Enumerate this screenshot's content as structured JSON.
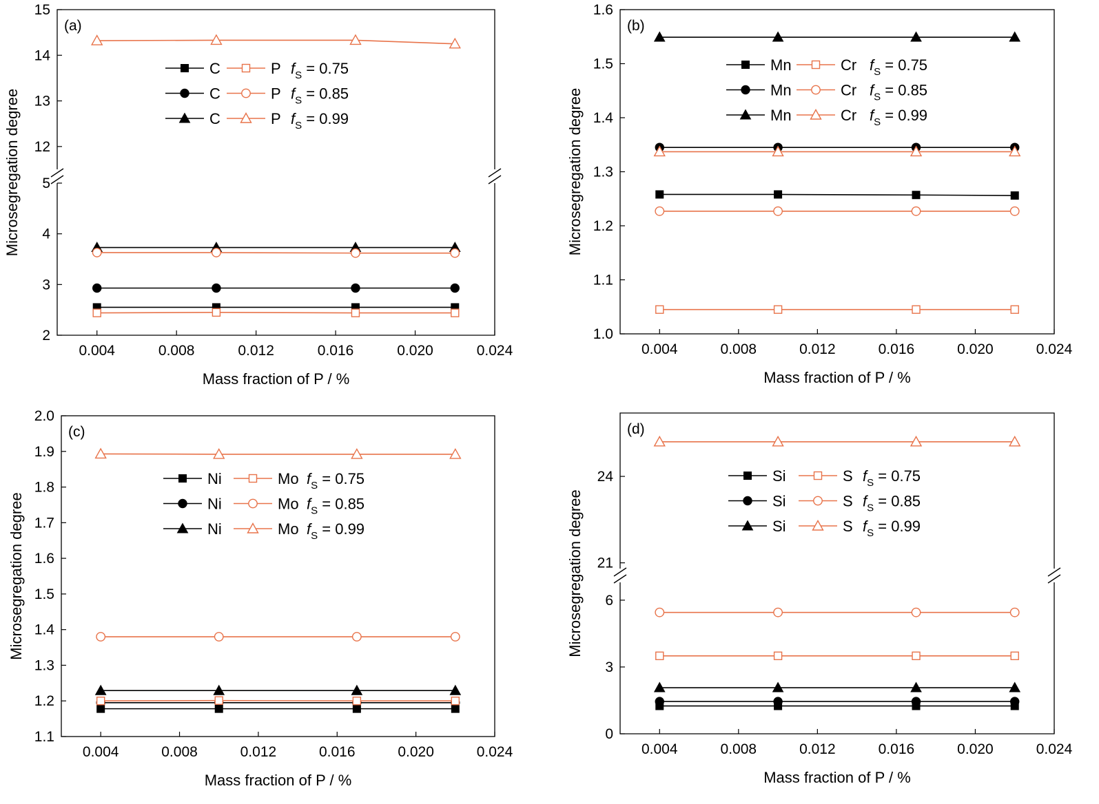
{
  "chart_data": [
    {
      "type": "line",
      "panel": "(a)",
      "xlabel": "Mass fraction of P / %",
      "ylabel": "Microsegregation degree",
      "x": [
        0.004,
        0.01,
        0.017,
        0.022
      ],
      "xticks": [
        "0.004",
        "0.008",
        "0.012",
        "0.016",
        "0.020",
        "0.024"
      ],
      "xlim": [
        0.002,
        0.024
      ],
      "broken_axis": true,
      "ylim_lower": [
        2,
        5
      ],
      "ylim_upper": [
        11.5,
        15
      ],
      "yticks_lower": [
        "2",
        "3",
        "4",
        "5"
      ],
      "yticks_upper": [
        "12",
        "13",
        "14",
        "15"
      ],
      "legend": [
        [
          "C",
          "P",
          "0.75"
        ],
        [
          "C",
          "P",
          "0.85"
        ],
        [
          "C",
          "P",
          "0.99"
        ]
      ],
      "series": [
        {
          "element": "C",
          "fs": "0.75",
          "marker": "square",
          "filled": true,
          "color": "#000000",
          "values": [
            2.55,
            2.55,
            2.55,
            2.55
          ]
        },
        {
          "element": "C",
          "fs": "0.85",
          "marker": "circle",
          "filled": true,
          "color": "#000000",
          "values": [
            2.93,
            2.93,
            2.93,
            2.93
          ]
        },
        {
          "element": "C",
          "fs": "0.99",
          "marker": "triangle",
          "filled": true,
          "color": "#000000",
          "values": [
            3.73,
            3.73,
            3.73,
            3.73
          ]
        },
        {
          "element": "P",
          "fs": "0.75",
          "marker": "square",
          "filled": false,
          "color": "#E8734A",
          "values": [
            2.44,
            2.45,
            2.44,
            2.44
          ]
        },
        {
          "element": "P",
          "fs": "0.85",
          "marker": "circle",
          "filled": false,
          "color": "#E8734A",
          "values": [
            3.63,
            3.63,
            3.62,
            3.62
          ]
        },
        {
          "element": "P",
          "fs": "0.99",
          "marker": "triangle",
          "filled": false,
          "color": "#E8734A",
          "values": [
            14.32,
            14.33,
            14.33,
            14.25
          ]
        }
      ]
    },
    {
      "type": "line",
      "panel": "(b)",
      "xlabel": "Mass fraction of P / %",
      "ylabel": "Microsegregation degree",
      "x": [
        0.004,
        0.01,
        0.017,
        0.022
      ],
      "xticks": [
        "0.004",
        "0.008",
        "0.012",
        "0.016",
        "0.020",
        "0.024"
      ],
      "xlim": [
        0.002,
        0.024
      ],
      "ylim": [
        1.0,
        1.6
      ],
      "yticks": [
        "1.0",
        "1.1",
        "1.2",
        "1.3",
        "1.4",
        "1.5",
        "1.6"
      ],
      "legend": [
        [
          "Mn",
          "Cr",
          "0.75"
        ],
        [
          "Mn",
          "Cr",
          "0.85"
        ],
        [
          "Mn",
          "Cr",
          "0.99"
        ]
      ],
      "series": [
        {
          "element": "Mn",
          "fs": "0.75",
          "marker": "square",
          "filled": true,
          "color": "#000000",
          "values": [
            1.258,
            1.258,
            1.257,
            1.256
          ]
        },
        {
          "element": "Mn",
          "fs": "0.85",
          "marker": "circle",
          "filled": true,
          "color": "#000000",
          "values": [
            1.345,
            1.345,
            1.345,
            1.345
          ]
        },
        {
          "element": "Mn",
          "fs": "0.99",
          "marker": "triangle",
          "filled": true,
          "color": "#000000",
          "values": [
            1.549,
            1.549,
            1.549,
            1.549
          ]
        },
        {
          "element": "Cr",
          "fs": "0.75",
          "marker": "square",
          "filled": false,
          "color": "#E8734A",
          "values": [
            1.045,
            1.045,
            1.045,
            1.045
          ]
        },
        {
          "element": "Cr",
          "fs": "0.85",
          "marker": "circle",
          "filled": false,
          "color": "#E8734A",
          "values": [
            1.227,
            1.227,
            1.227,
            1.227
          ]
        },
        {
          "element": "Cr",
          "fs": "0.99",
          "marker": "triangle",
          "filled": false,
          "color": "#E8734A",
          "values": [
            1.337,
            1.337,
            1.337,
            1.337
          ]
        }
      ]
    },
    {
      "type": "line",
      "panel": "(c)",
      "xlabel": "Mass fraction of P / %",
      "ylabel": "Microsegregation degree",
      "x": [
        0.004,
        0.01,
        0.017,
        0.022
      ],
      "xticks": [
        "0.004",
        "0.008",
        "0.012",
        "0.016",
        "0.020",
        "0.024"
      ],
      "xlim": [
        0.002,
        0.024
      ],
      "ylim": [
        1.1,
        2.0
      ],
      "yticks": [
        "1.1",
        "1.2",
        "1.3",
        "1.4",
        "1.5",
        "1.6",
        "1.7",
        "1.8",
        "1.9",
        "2.0"
      ],
      "legend": [
        [
          "Ni",
          "Mo",
          "0.75"
        ],
        [
          "Ni",
          "Mo",
          "0.85"
        ],
        [
          "Ni",
          "Mo",
          "0.99"
        ]
      ],
      "series": [
        {
          "element": "Ni",
          "fs": "0.75",
          "marker": "square",
          "filled": true,
          "color": "#000000",
          "values": [
            1.178,
            1.178,
            1.178,
            1.178
          ]
        },
        {
          "element": "Ni",
          "fs": "0.85",
          "marker": "circle",
          "filled": true,
          "color": "#000000",
          "values": [
            1.195,
            1.195,
            1.195,
            1.195
          ]
        },
        {
          "element": "Ni",
          "fs": "0.99",
          "marker": "triangle",
          "filled": true,
          "color": "#000000",
          "values": [
            1.229,
            1.229,
            1.229,
            1.229
          ]
        },
        {
          "element": "Mo",
          "fs": "0.75",
          "marker": "square",
          "filled": false,
          "color": "#E8734A",
          "values": [
            1.2,
            1.201,
            1.2,
            1.2
          ]
        },
        {
          "element": "Mo",
          "fs": "0.85",
          "marker": "circle",
          "filled": false,
          "color": "#E8734A",
          "values": [
            1.38,
            1.38,
            1.38,
            1.38
          ]
        },
        {
          "element": "Mo",
          "fs": "0.99",
          "marker": "triangle",
          "filled": false,
          "color": "#E8734A",
          "values": [
            1.893,
            1.892,
            1.892,
            1.892
          ]
        }
      ]
    },
    {
      "type": "line",
      "panel": "(d)",
      "xlabel": "Mass fraction of P / %",
      "ylabel": "Microsegregation degree",
      "x": [
        0.004,
        0.01,
        0.017,
        0.022
      ],
      "xticks": [
        "0.004",
        "0.008",
        "0.012",
        "0.016",
        "0.020",
        "0.024"
      ],
      "xlim": [
        0.002,
        0.024
      ],
      "broken_axis": true,
      "ylim_lower": [
        0,
        6.8
      ],
      "ylim_upper": [
        20.8,
        26.2
      ],
      "yticks_lower": [
        "0",
        "3",
        "6"
      ],
      "yticks_upper": [
        "21",
        "24"
      ],
      "legend": [
        [
          "Si",
          "S",
          "0.75"
        ],
        [
          "Si",
          "S",
          "0.85"
        ],
        [
          "Si",
          "S",
          "0.99"
        ]
      ],
      "series": [
        {
          "element": "Si",
          "fs": "0.75",
          "marker": "square",
          "filled": true,
          "color": "#000000",
          "values": [
            1.25,
            1.25,
            1.25,
            1.25
          ]
        },
        {
          "element": "Si",
          "fs": "0.85",
          "marker": "circle",
          "filled": true,
          "color": "#000000",
          "values": [
            1.45,
            1.45,
            1.45,
            1.45
          ]
        },
        {
          "element": "Si",
          "fs": "0.99",
          "marker": "triangle",
          "filled": true,
          "color": "#000000",
          "values": [
            2.07,
            2.07,
            2.07,
            2.07
          ]
        },
        {
          "element": "S",
          "fs": "0.75",
          "marker": "square",
          "filled": false,
          "color": "#E8734A",
          "values": [
            3.5,
            3.5,
            3.5,
            3.5
          ]
        },
        {
          "element": "S",
          "fs": "0.85",
          "marker": "circle",
          "filled": false,
          "color": "#E8734A",
          "values": [
            5.45,
            5.45,
            5.45,
            5.45
          ]
        },
        {
          "element": "S",
          "fs": "0.99",
          "marker": "triangle",
          "filled": false,
          "color": "#E8734A",
          "values": [
            25.2,
            25.2,
            25.2,
            25.2
          ]
        }
      ]
    }
  ]
}
